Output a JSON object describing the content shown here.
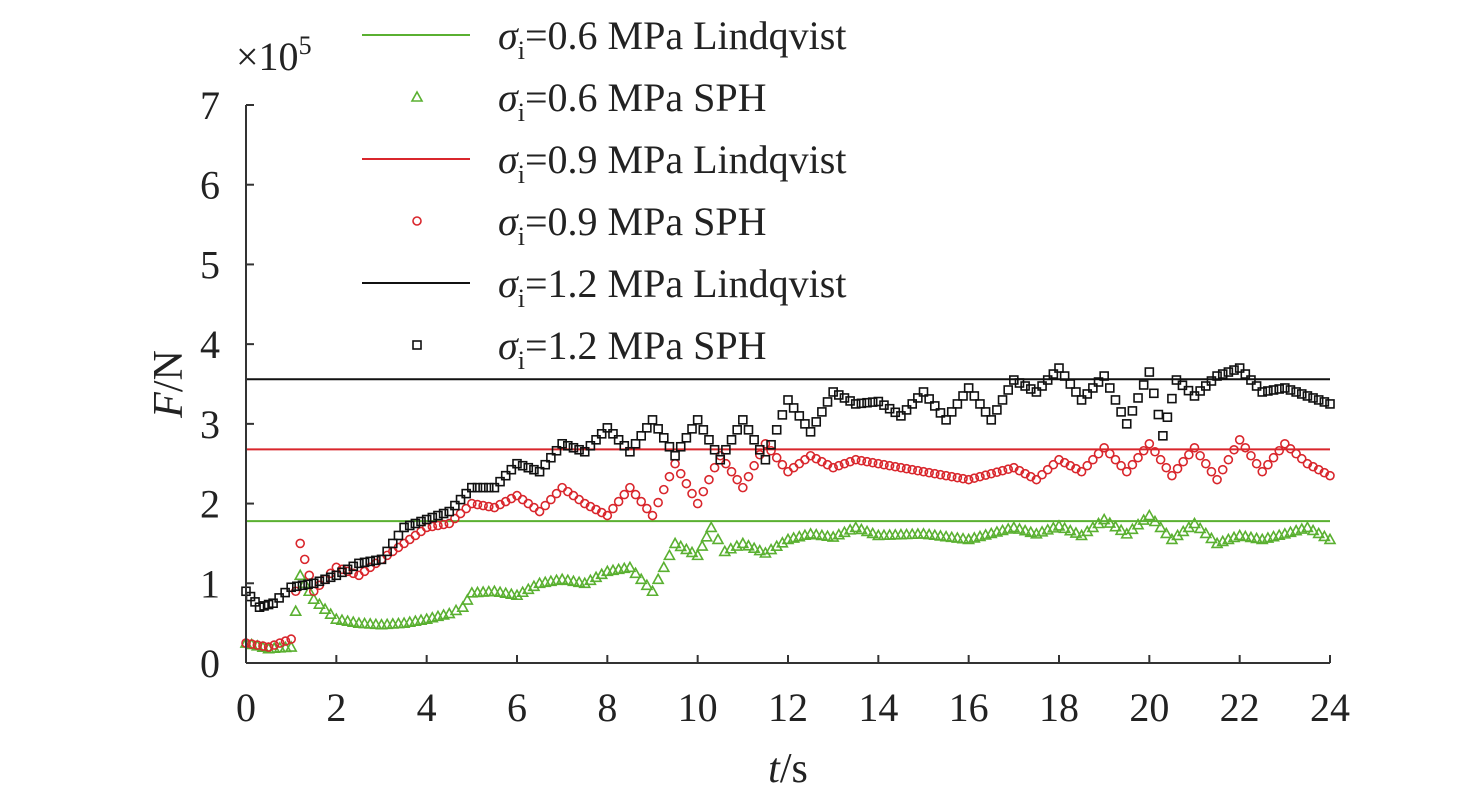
{
  "chart_data": {
    "type": "line",
    "xlabel": {
      "var": "t",
      "unit": "/s"
    },
    "ylabel": {
      "var": "F",
      "unit": "/N"
    },
    "y_multiplier": {
      "base": "×10",
      "exp": "5"
    },
    "xlim": [
      0,
      24
    ],
    "ylim": [
      0,
      7
    ],
    "x_ticks": [
      "0",
      "2",
      "4",
      "6",
      "8",
      "10",
      "12",
      "14",
      "16",
      "18",
      "20",
      "22",
      "24"
    ],
    "y_ticks": [
      "0",
      "1",
      "2",
      "3",
      "4",
      "5",
      "6",
      "7"
    ],
    "legend_position": "top-center",
    "colors": {
      "green": "#5ab031",
      "red": "#d9262c",
      "black": "#111111"
    },
    "series": [
      {
        "name": "σi=0.6 MPa Lindqvist",
        "sym": "σ",
        "sub": "i",
        "rest": "=0.6 MPa Lindqvist",
        "kind": "line",
        "color": "#5ab031",
        "y": 1.78
      },
      {
        "name": "σi=0.6 MPa SPH",
        "sym": "σ",
        "sub": "i",
        "rest": "=0.6 MPa SPH",
        "kind": "marker",
        "marker": "triangle",
        "color": "#5ab031",
        "x": [
          0,
          0.5,
          1,
          1.2,
          1.5,
          2,
          2.5,
          3,
          3.5,
          4,
          4.5,
          4.8,
          5,
          5.5,
          6,
          6.5,
          7,
          7.5,
          8,
          8.5,
          9,
          9.5,
          10,
          10.3,
          10.6,
          11,
          11.5,
          12,
          12.5,
          13,
          13.5,
          14,
          15,
          16,
          17,
          17.5,
          18,
          18.5,
          19,
          19.5,
          20,
          20.5,
          21,
          21.5,
          22,
          22.5,
          23,
          23.5,
          24
        ],
        "y": [
          0.25,
          0.18,
          0.2,
          1.1,
          0.8,
          0.55,
          0.5,
          0.48,
          0.5,
          0.55,
          0.62,
          0.7,
          0.88,
          0.9,
          0.85,
          1.0,
          1.05,
          1.0,
          1.15,
          1.2,
          0.9,
          1.5,
          1.35,
          1.7,
          1.4,
          1.5,
          1.38,
          1.55,
          1.62,
          1.58,
          1.7,
          1.6,
          1.62,
          1.55,
          1.7,
          1.62,
          1.72,
          1.6,
          1.8,
          1.62,
          1.85,
          1.55,
          1.75,
          1.5,
          1.6,
          1.55,
          1.62,
          1.7,
          1.55
        ]
      },
      {
        "name": "σi=0.9 MPa Lindqvist",
        "sym": "σ",
        "sub": "i",
        "rest": "=0.9 MPa Lindqvist",
        "kind": "line",
        "color": "#d9262c",
        "y": 2.68
      },
      {
        "name": "σi=0.9 MPa SPH",
        "sym": "σ",
        "sub": "i",
        "rest": "=0.9 MPa SPH",
        "kind": "marker",
        "marker": "circle",
        "color": "#d9262c",
        "x": [
          0,
          0.5,
          1,
          1.2,
          1.5,
          2,
          2.5,
          3,
          3.5,
          4,
          4.5,
          5,
          5.5,
          6,
          6.5,
          7,
          7.5,
          8,
          8.5,
          9,
          9.5,
          10,
          10.5,
          11,
          11.5,
          12,
          12.5,
          13,
          13.5,
          14,
          15,
          16,
          17,
          17.5,
          18,
          18.5,
          19,
          19.5,
          20,
          20.5,
          21,
          21.5,
          22,
          22.5,
          23,
          23.5,
          24
        ],
        "y": [
          0.25,
          0.2,
          0.3,
          1.5,
          0.9,
          1.2,
          1.1,
          1.3,
          1.5,
          1.7,
          1.75,
          2.0,
          1.95,
          2.1,
          1.9,
          2.2,
          2.0,
          1.85,
          2.2,
          1.85,
          2.5,
          2.0,
          2.6,
          2.2,
          2.75,
          2.4,
          2.6,
          2.45,
          2.55,
          2.5,
          2.4,
          2.3,
          2.45,
          2.3,
          2.55,
          2.4,
          2.7,
          2.4,
          2.75,
          2.35,
          2.7,
          2.3,
          2.8,
          2.4,
          2.75,
          2.5,
          2.35
        ]
      },
      {
        "name": "σi=1.2 MPa Lindqvist",
        "sym": "σ",
        "sub": "i",
        "rest": "=1.2 MPa Lindqvist",
        "kind": "line",
        "color": "#111111",
        "y": 3.56
      },
      {
        "name": "σi=1.2 MPa SPH",
        "sym": "σ",
        "sub": "i",
        "rest": "=1.2 MPa SPH",
        "kind": "marker",
        "marker": "square",
        "color": "#111111",
        "x": [
          0,
          0.3,
          0.6,
          1,
          1.5,
          2,
          2.5,
          3,
          3.5,
          4,
          4.5,
          5,
          5.5,
          6,
          6.5,
          7,
          7.5,
          8,
          8.5,
          9,
          9.5,
          10,
          10.5,
          11,
          11.5,
          12,
          12.5,
          13,
          13.5,
          14,
          14.5,
          15,
          15.5,
          16,
          16.5,
          17,
          17.5,
          18,
          18.5,
          19,
          19.5,
          20,
          20.3,
          20.6,
          21,
          21.5,
          22,
          22.5,
          23,
          23.5,
          24
        ],
        "y": [
          0.9,
          0.7,
          0.75,
          0.95,
          1.0,
          1.1,
          1.25,
          1.3,
          1.7,
          1.8,
          1.9,
          2.2,
          2.2,
          2.5,
          2.4,
          2.75,
          2.65,
          2.95,
          2.65,
          3.05,
          2.6,
          3.05,
          2.55,
          3.05,
          2.55,
          3.3,
          2.9,
          3.4,
          3.25,
          3.28,
          3.1,
          3.4,
          3.05,
          3.45,
          3.05,
          3.55,
          3.4,
          3.7,
          3.3,
          3.6,
          3.0,
          3.65,
          2.85,
          3.55,
          3.35,
          3.6,
          3.7,
          3.4,
          3.45,
          3.35,
          3.25
        ]
      }
    ]
  }
}
